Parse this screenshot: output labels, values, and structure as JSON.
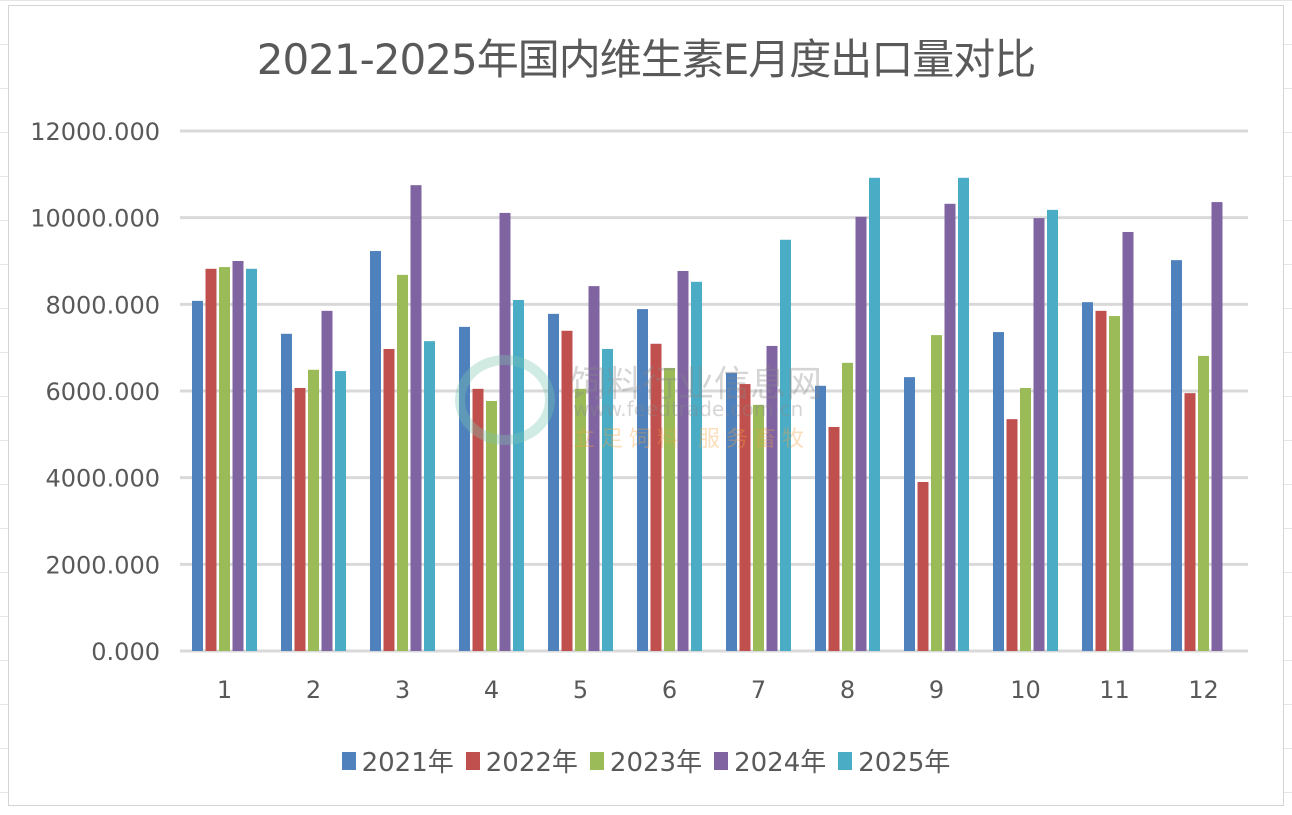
{
  "chart_data": {
    "type": "bar",
    "title": "2021-2025年国内维生素E月度出口量对比",
    "xlabel": "",
    "ylabel": "",
    "ylim": [
      0,
      12000
    ],
    "yticks": [
      "0.000",
      "2000.000",
      "4000.000",
      "6000.000",
      "8000.000",
      "10000.000",
      "12000.000"
    ],
    "ytick_values": [
      0,
      2000,
      4000,
      6000,
      8000,
      10000,
      12000
    ],
    "grid": true,
    "legend_position": "bottom",
    "categories": [
      "1",
      "2",
      "3",
      "4",
      "5",
      "6",
      "7",
      "8",
      "9",
      "10",
      "11",
      "12"
    ],
    "series": [
      {
        "name": "2021年",
        "color": "#4f81bd",
        "values": [
          8080,
          7320,
          9230,
          7480,
          7780,
          7890,
          6420,
          6120,
          6320,
          7360,
          8050,
          9020
        ]
      },
      {
        "name": "2022年",
        "color": "#c0504d",
        "values": [
          8820,
          6070,
          6970,
          6050,
          7390,
          7090,
          6160,
          5170,
          3900,
          5350,
          7850,
          5950
        ]
      },
      {
        "name": "2023年",
        "color": "#9bbb59",
        "values": [
          8860,
          6490,
          8680,
          5770,
          6050,
          6530,
          5680,
          6650,
          7290,
          6070,
          7730,
          6810
        ]
      },
      {
        "name": "2024年",
        "color": "#8064a2",
        "values": [
          9000,
          7850,
          10750,
          10110,
          8420,
          8770,
          7040,
          10020,
          10320,
          9990,
          9670,
          10360
        ]
      },
      {
        "name": "2025年",
        "color": "#4bacc6",
        "values": [
          8820,
          6460,
          7150,
          8100,
          6970,
          8520,
          9490,
          10920,
          10920,
          10180,
          null,
          null
        ]
      }
    ]
  },
  "watermark": {
    "name": "饲料行业信息网",
    "url": "www.feedtrade.com.cn",
    "slogan": "立足饲料  服务畜牧"
  }
}
